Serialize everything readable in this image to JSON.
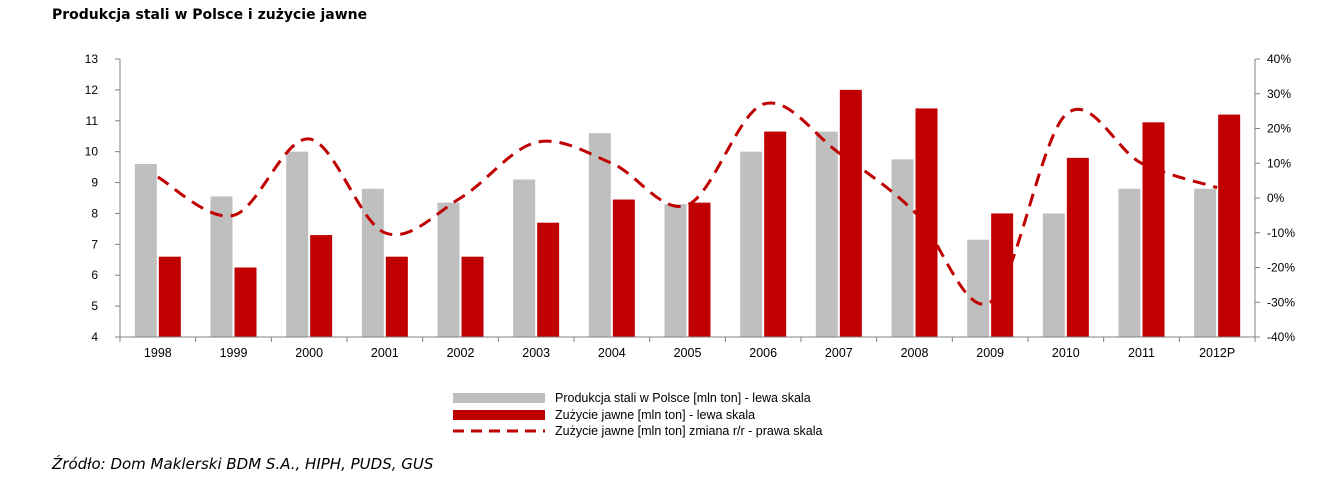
{
  "title": "Produkcja stali w Polsce i zużycie jawne",
  "source": "Źródło: Dom Maklerski BDM S.A., HIPH, PUDS, GUS",
  "colors": {
    "production": "#bfbfbf",
    "consumption": "#c00000",
    "change": "#c00000"
  },
  "chart_data": {
    "type": "bar",
    "categories": [
      "1998",
      "1999",
      "2000",
      "2001",
      "2002",
      "2003",
      "2004",
      "2005",
      "2006",
      "2007",
      "2008",
      "2009",
      "2010",
      "2011",
      "2012P"
    ],
    "series": [
      {
        "name": "Produkcja stali w Polsce [mln ton] - lewa skala",
        "type": "bar",
        "axis": "left",
        "values": [
          9.6,
          8.55,
          10.0,
          8.8,
          8.35,
          9.1,
          10.6,
          8.3,
          10.0,
          10.65,
          9.75,
          7.15,
          8.0,
          8.8,
          8.8
        ]
      },
      {
        "name": "Zużycie jawne [mln ton] - lewa skala",
        "type": "bar",
        "axis": "left",
        "values": [
          6.6,
          6.25,
          7.3,
          6.6,
          6.6,
          7.7,
          8.45,
          8.35,
          10.65,
          12.0,
          11.4,
          8.0,
          9.8,
          10.95,
          11.2
        ]
      },
      {
        "name": "Zużycie jawne [mln ton] zmiana r/r - prawa skala",
        "type": "line",
        "style": "dashed",
        "axis": "right",
        "values": [
          6,
          -5,
          17,
          -10,
          0,
          16,
          10,
          -2,
          27,
          13,
          -4,
          -30,
          24,
          10,
          3
        ]
      }
    ],
    "y_left": {
      "min": 4,
      "max": 13,
      "ticks": [
        "4",
        "5",
        "6",
        "7",
        "8",
        "9",
        "10",
        "11",
        "12",
        "13"
      ]
    },
    "y_right": {
      "min": -40,
      "max": 40,
      "ticks": [
        "-40%",
        "-30%",
        "-20%",
        "-10%",
        "0%",
        "10%",
        "20%",
        "30%",
        "40%"
      ]
    },
    "grid": false,
    "legend_position": "bottom"
  }
}
